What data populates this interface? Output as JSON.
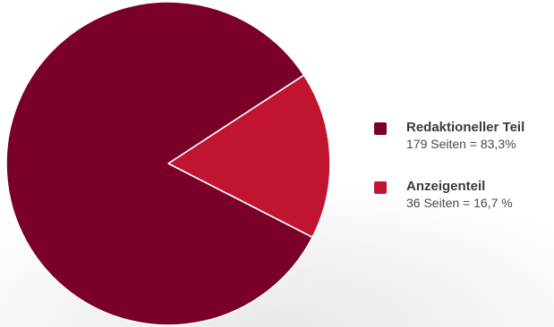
{
  "chart_data": {
    "type": "pie",
    "title": "",
    "series": [
      {
        "name": "Redaktioneller Teil",
        "value": 179,
        "detail": "179 Seiten = 83,3%",
        "color": "#7a0029"
      },
      {
        "name": "Anzeigenteil",
        "value": 36,
        "detail": "36 Seiten = 16,7 %",
        "color": "#c01431"
      }
    ],
    "legend_position": "right"
  }
}
